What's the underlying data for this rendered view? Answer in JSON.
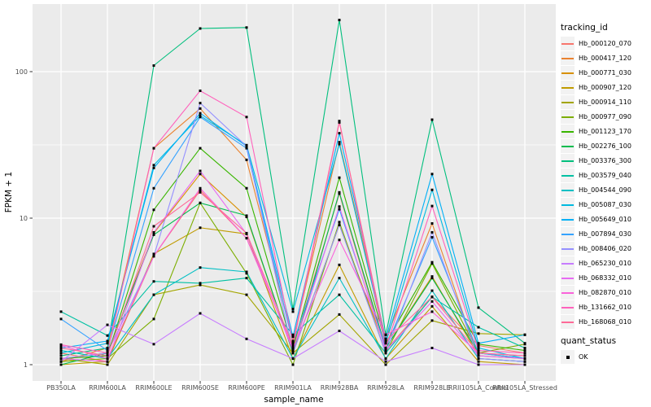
{
  "figure": {
    "background": "#FFFFFF",
    "panel_background": "#EBEBEB",
    "gridline_color": "#FFFFFF",
    "tick_label_color": "#4D4D4D",
    "axis_title_color": "#000000"
  },
  "legend": {
    "tracking_title": "tracking_id",
    "quant_title": "quant_status",
    "quant_items": [
      {
        "label": "OK",
        "marker": "black-square"
      }
    ],
    "key_background": "#F2F2F2"
  },
  "chart_data": {
    "type": "line",
    "title": "",
    "xlabel": "sample_name",
    "ylabel": "FPKM + 1",
    "y_scale": "log10",
    "y_ticks": [
      1,
      10,
      100
    ],
    "y_minor_ticks": [
      3.1623,
      31.623
    ],
    "ylim": [
      0.78,
      290
    ],
    "grid": true,
    "legend_position": "right",
    "point_marker": {
      "shape": "square",
      "color": "#000000",
      "size": 3
    },
    "x_categories": [
      "PB350LA",
      "RRIM600LA",
      "RRIM600LE",
      "RRIM600SE",
      "RRIM600PE",
      "RRIM901LA",
      "RRIM928BA",
      "RRIM928LA",
      "RRIM928LE",
      "RRII105LA_Control",
      "RRII105LA_Stressed"
    ],
    "series": [
      {
        "name": "Hb_000120_070",
        "color": "#F8766D",
        "values": [
          1.2,
          1.05,
          5.5,
          15.5,
          7.3,
          1.3,
          14.7,
          1.25,
          2.9,
          1.35,
          1.2
        ]
      },
      {
        "name": "Hb_000417_120",
        "color": "#EA8331",
        "values": [
          1.05,
          1.3,
          30,
          56,
          25,
          1.45,
          33,
          1.5,
          9.2,
          1.1,
          1.05
        ]
      },
      {
        "name": "Hb_000771_030",
        "color": "#D89000",
        "values": [
          1.1,
          1.2,
          7.9,
          20,
          10.2,
          1.2,
          9.0,
          1.3,
          4.0,
          1.15,
          1.1
        ]
      },
      {
        "name": "Hb_000907_120",
        "color": "#C09B00",
        "values": [
          1.0,
          1.05,
          5.7,
          8.6,
          7.8,
          1.1,
          4.8,
          1.1,
          2.5,
          1.05,
          1.0
        ]
      },
      {
        "name": "Hb_000914_110",
        "color": "#A3A500",
        "values": [
          1.1,
          1.0,
          3.0,
          3.5,
          3.0,
          1.2,
          2.2,
          1.0,
          2.0,
          1.63,
          1.6
        ]
      },
      {
        "name": "Hb_000977_090",
        "color": "#7CAE00",
        "values": [
          1.05,
          1.1,
          2.05,
          12.7,
          4.2,
          1.0,
          9.4,
          1.2,
          4.9,
          1.2,
          1.38
        ]
      },
      {
        "name": "Hb_001123_170",
        "color": "#39B600",
        "values": [
          1.1,
          1.15,
          11.4,
          30,
          16,
          1.3,
          18.9,
          1.4,
          5.0,
          1.38,
          1.25
        ]
      },
      {
        "name": "Hb_002276_100",
        "color": "#00BB4E",
        "values": [
          1.0,
          1.2,
          7.7,
          12.7,
          10.4,
          1.2,
          15,
          1.3,
          3.9,
          1.2,
          1.1
        ]
      },
      {
        "name": "Hb_003376_300",
        "color": "#00BF7D",
        "values": [
          1.15,
          1.3,
          110,
          197,
          200,
          2.4,
          225,
          1.6,
          47,
          2.45,
          1.4
        ]
      },
      {
        "name": "Hb_003579_040",
        "color": "#00C1A3",
        "values": [
          2.3,
          1.58,
          3.7,
          3.6,
          3.9,
          1.6,
          3.0,
          1.2,
          2.9,
          1.8,
          1.3
        ]
      },
      {
        "name": "Hb_004544_090",
        "color": "#00BFC4",
        "values": [
          1.25,
          1.1,
          3.0,
          4.6,
          4.3,
          1.1,
          3.9,
          1.1,
          3.2,
          1.1,
          1.05
        ]
      },
      {
        "name": "Hb_005087_030",
        "color": "#00BAE0",
        "values": [
          1.2,
          1.4,
          23,
          50,
          31.5,
          2.3,
          32,
          1.4,
          15.6,
          1.3,
          1.1
        ]
      },
      {
        "name": "Hb_005649_010",
        "color": "#00B0F6",
        "values": [
          1.3,
          1.45,
          22,
          52,
          31,
          1.55,
          38,
          1.5,
          20,
          1.4,
          1.6
        ]
      },
      {
        "name": "Hb_007894_030",
        "color": "#35A2FF",
        "values": [
          2.05,
          1.25,
          16,
          49,
          30,
          1.4,
          11.5,
          1.3,
          7.4,
          1.2,
          1.1
        ]
      },
      {
        "name": "Hb_008406_020",
        "color": "#9590FF",
        "values": [
          1.1,
          1.2,
          5.5,
          61,
          31,
          1.2,
          9.0,
          1.2,
          8.0,
          1.1,
          1.05
        ]
      },
      {
        "name": "Hb_065230_010",
        "color": "#C77CFF",
        "values": [
          1.05,
          1.87,
          1.38,
          2.24,
          1.5,
          1.1,
          1.7,
          1.05,
          1.3,
          1.0,
          1.0
        ]
      },
      {
        "name": "Hb_068332_010",
        "color": "#E76BF3",
        "values": [
          1.1,
          1.05,
          8.0,
          21,
          7.8,
          1.25,
          12,
          1.25,
          2.7,
          1.15,
          1.1
        ]
      },
      {
        "name": "Hb_082870_010",
        "color": "#FA62DB",
        "values": [
          1.35,
          1.1,
          5.5,
          16,
          7.3,
          1.3,
          7.1,
          1.6,
          2.3,
          1.2,
          1.15
        ]
      },
      {
        "name": "Hb_131662_010",
        "color": "#FF62BC",
        "values": [
          1.37,
          1.2,
          30,
          74,
          49,
          1.4,
          46,
          1.3,
          12.1,
          1.25,
          1.2
        ]
      },
      {
        "name": "Hb_168068_010",
        "color": "#FF6A98",
        "values": [
          1.3,
          1.15,
          8.8,
          15,
          7.9,
          1.35,
          45,
          1.45,
          2.9,
          1.2,
          1.15
        ]
      }
    ]
  }
}
